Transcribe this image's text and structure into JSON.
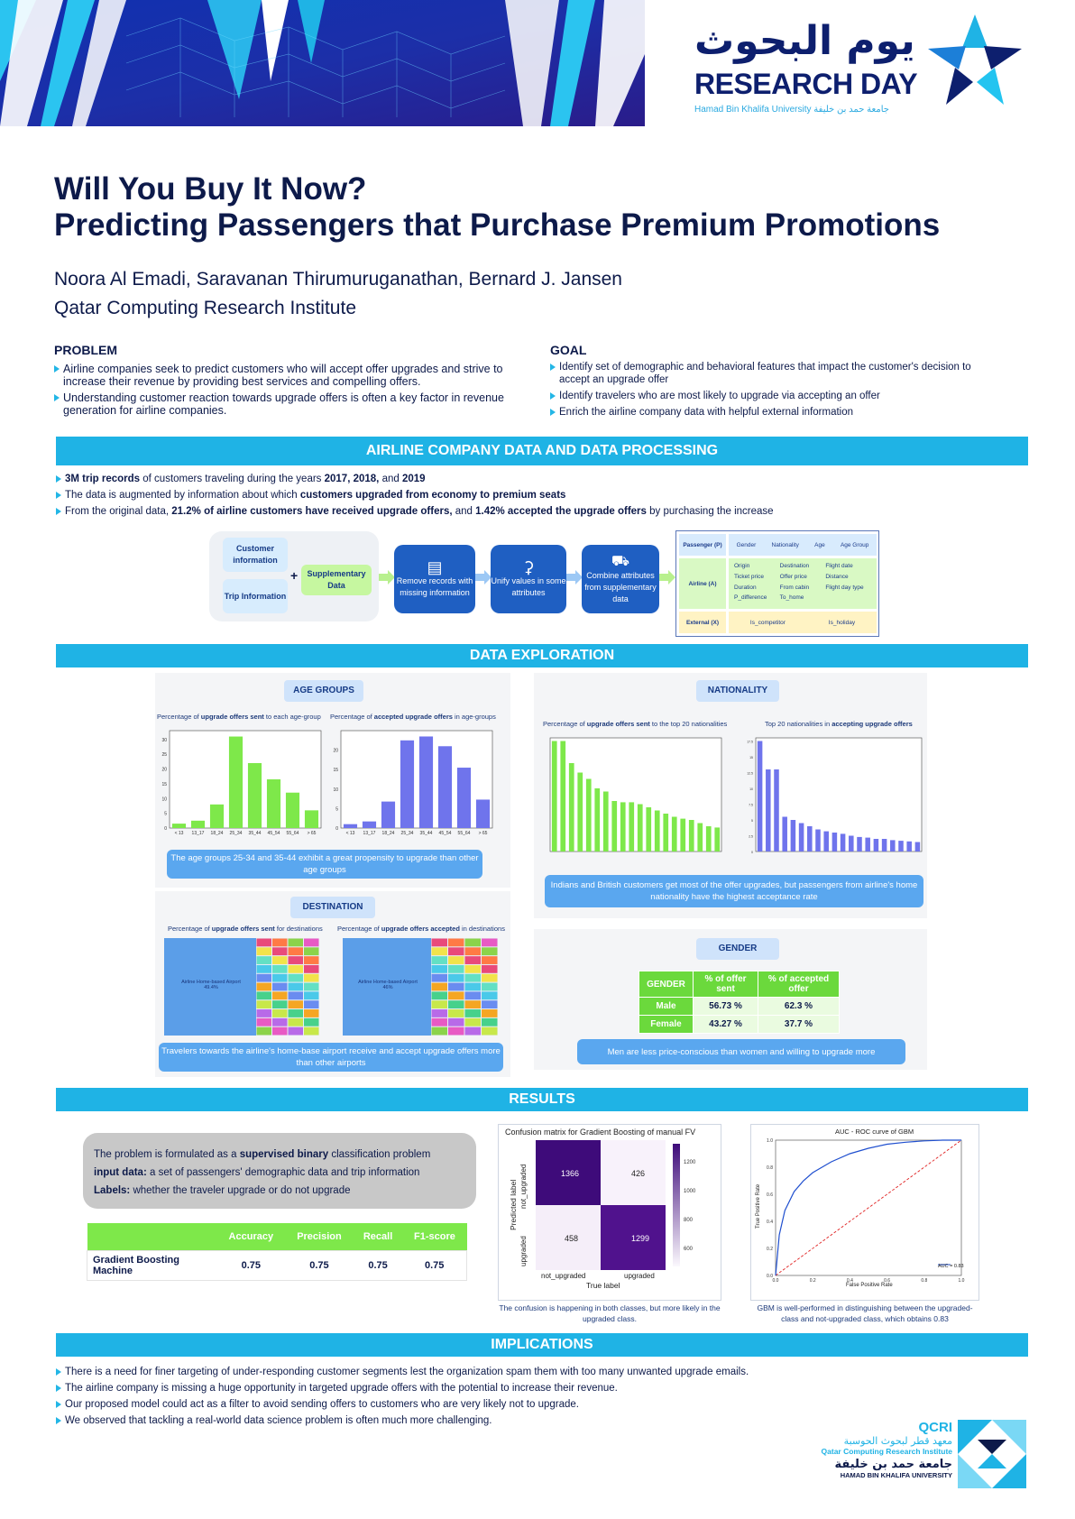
{
  "header": {
    "logo_arabic": "يوم البحوث",
    "logo_english": "RESEARCH DAY",
    "logo_sub": "Hamad Bin Khalifa University  جامعة حمد بن خليفة"
  },
  "title_line1": "Will You Buy It Now?",
  "title_line2": "Predicting Passengers that Purchase Premium Promotions",
  "authors": "Noora Al Emadi, Saravanan Thirumuruganathan, Bernard J. Jansen",
  "institute": "Qatar Computing Research Institute",
  "problem": {
    "heading": "PROBLEM",
    "items": [
      "Airline companies seek to predict customers who will accept offer upgrades and strive to increase their revenue by providing best services and compelling offers.",
      "Understanding customer reaction towards upgrade offers is often a key factor in revenue generation for airline companies."
    ]
  },
  "goal": {
    "heading": "GOAL",
    "items": [
      "Identify set of demographic and behavioral features that impact the customer's decision to accept an upgrade offer",
      "Identify travelers who are most likely to upgrade via accepting an offer",
      "Enrich the airline company data with helpful external information"
    ]
  },
  "data_section": {
    "title": "AIRLINE COMPANY DATA AND DATA PROCESSING",
    "b1_bold": "3M trip records",
    "b1_text": " of customers traveling during the years ",
    "b1_years": "2017, 2018,",
    "b1_and": " and ",
    "b1_year3": "2019",
    "b2_text": "The data is augmented by information about which ",
    "b2_bold": "customers upgraded from economy to premium seats",
    "b3_text1": "From the original data, ",
    "b3_bold1": "21.2% of airline customers have received upgrade offers,",
    "b3_text2": " and ",
    "b3_bold2": "1.42% accepted the upgrade offers",
    "b3_text3": " by purchasing the increase",
    "flow": {
      "customer": "Customer information",
      "trip": "Trip Information",
      "plus": "+",
      "supp": "Supplementary Data",
      "remove": "Remove records with missing information",
      "unify": "Unify values in some attributes",
      "combine": "Combine attributes from supplementary data"
    },
    "attr": {
      "passenger": "Passenger (P)",
      "p_attrs": [
        "Gender",
        "Nationality",
        "Age",
        "Age Group"
      ],
      "airline": "Airline (A)",
      "a_attrs": [
        "Origin",
        "Destination",
        "Flight date",
        "Ticket price",
        "Offer price",
        "Distance",
        "Duration",
        "From cabin",
        "Flight day type",
        "P_difference",
        "To_home",
        ""
      ],
      "external": "External (X)",
      "x_attrs": [
        "Is_competitor",
        "Is_holiday"
      ]
    }
  },
  "exploration": {
    "title": "DATA EXPLORATION",
    "age": {
      "chip": "AGE GROUPS",
      "left_caption_pre": "Percentage of ",
      "left_caption_bold": "upgrade offers sent",
      "left_caption_post": " to each age-group",
      "right_caption_pre": "Percentage of ",
      "right_caption_bold": "accepted upgrade offers",
      "right_caption_post": " in age-groups",
      "note": "The age groups 25-34 and 35-44 exhibit a great propensity to upgrade than other age groups"
    },
    "nationality": {
      "chip": "NATIONALITY",
      "left_caption_pre": "Percentage of ",
      "left_caption_bold": "upgrade offers sent",
      "left_caption_post": " to the top 20 nationalities",
      "right_caption_pre": "Top 20 nationalities in ",
      "right_caption_bold": "accepting upgrade offers",
      "note": "Indians and British customers get most of the offer upgrades, but passengers from airline's home nationality have the highest acceptance rate"
    },
    "destination": {
      "chip": "DESTINATION",
      "left_caption_pre": "Percentage of ",
      "left_caption_bold": "upgrade offers sent",
      "left_caption_post": " for destinations",
      "right_caption_pre": "Percentage of ",
      "right_caption_bold": "upgrade offers accepted",
      "right_caption_post": " in destinations",
      "left_big": "Airline Home-based Airport\n49.4%",
      "right_big": "Airline Home-based Airport\n46%",
      "note": "Travelers towards the airline's home-base airport receive and accept upgrade offers more than other airports"
    },
    "gender": {
      "chip": "GENDER",
      "headers": [
        "GENDER",
        "% of offer sent",
        "% of accepted offer"
      ],
      "rows": [
        [
          "Male",
          "56.73 %",
          "62.3 %"
        ],
        [
          "Female",
          "43.27 %",
          "37.7 %"
        ]
      ],
      "note": "Men are less price-conscious than women and willing to upgrade more"
    }
  },
  "chart_data": [
    {
      "type": "bar",
      "title": "Percentage of upgrade offers sent to each age-group",
      "categories": [
        "< 13",
        "13_17",
        "18_24",
        "25_34",
        "35_44",
        "45_54",
        "55_64",
        "> 65"
      ],
      "values": [
        1.5,
        2.5,
        8,
        31,
        22,
        16.5,
        12,
        6
      ],
      "ylim": [
        0,
        33
      ],
      "yticks": [
        0,
        5,
        10,
        15,
        20,
        25,
        30
      ],
      "color": "#7ee84a"
    },
    {
      "type": "bar",
      "title": "Percentage of accepted upgrade offers in age-groups",
      "categories": [
        "< 13",
        "13_17",
        "18_24",
        "25_34",
        "35_44",
        "45_54",
        "55_64",
        "> 65"
      ],
      "values": [
        1,
        1.7,
        6.8,
        22.5,
        23.5,
        21,
        15.5,
        7.3
      ],
      "ylim": [
        0,
        25
      ],
      "yticks": [
        0,
        5,
        10,
        15,
        20
      ],
      "color": "#6f74ec"
    },
    {
      "type": "bar",
      "title": "Percentage of upgrade offers sent to the top 20 nationalities",
      "values": [
        17.5,
        17.5,
        14,
        12.5,
        11.5,
        10,
        9.5,
        8,
        7.8,
        7.8,
        7.5,
        7,
        6.5,
        6,
        5.5,
        5.2,
        5,
        4.5,
        4,
        3.8
      ],
      "ylim": [
        0,
        18
      ],
      "color": "#7ee84a"
    },
    {
      "type": "bar",
      "title": "Top 20 nationalities in accepting upgrade offers",
      "values": [
        17.5,
        13,
        13,
        5.5,
        5,
        4.5,
        4,
        3.5,
        3.2,
        3,
        2.8,
        2.5,
        2.3,
        2.2,
        2,
        2,
        1.8,
        1.7,
        1.6,
        1.5
      ],
      "ylim": [
        0,
        18
      ],
      "yticks": [
        0,
        2.5,
        5.0,
        7.5,
        10.0,
        12.5,
        15.0,
        17.5
      ],
      "color": "#6f74ec"
    },
    {
      "type": "heatmap",
      "title": "Confusion matrix for Gradient Boosting of manual FV",
      "rows": [
        "not_upgraded",
        "upgraded"
      ],
      "cols": [
        "not_upgraded",
        "upgraded"
      ],
      "values": [
        [
          1366,
          426
        ],
        [
          458,
          1299
        ]
      ],
      "xlabel": "True label",
      "ylabel": "Predicted label",
      "colorbar_ticks": [
        600,
        800,
        1000,
        1200
      ]
    },
    {
      "type": "line",
      "title": "AUC - ROC curve of GBM",
      "xlabel": "False Positive Rate",
      "ylabel": "True Positive Rate",
      "xlim": [
        0,
        1
      ],
      "ylim": [
        0,
        1
      ],
      "series": [
        {
          "name": "AUC = 0.83",
          "x": [
            0,
            0.02,
            0.05,
            0.1,
            0.15,
            0.2,
            0.3,
            0.4,
            0.5,
            0.6,
            0.7,
            0.8,
            0.9,
            1.0
          ],
          "y": [
            0,
            0.3,
            0.48,
            0.62,
            0.7,
            0.76,
            0.84,
            0.9,
            0.94,
            0.97,
            0.985,
            0.995,
            1.0,
            1.0
          ]
        }
      ]
    }
  ],
  "results": {
    "title": "RESULTS",
    "l1_pre": "The problem is formulated as a ",
    "l1_bold": "supervised binary",
    "l1_post": " classification problem",
    "l2_bold": "input data:",
    "l2_post": " a set of passengers' demographic data and trip information",
    "l3_bold": "Labels:",
    "l3_post": " whether the traveler upgrade or do not upgrade",
    "table_headers": [
      "",
      "Accuracy",
      "Precision",
      "Recall",
      "F1-score"
    ],
    "table_row": [
      "Gradient Boosting Machine",
      "0.75",
      "0.75",
      "0.75",
      "0.75"
    ],
    "cm_title": "Confusion matrix for Gradient Boosting of manual FV",
    "cm_caption": "The confusion is happening in both classes, but more likely in the upgraded class.",
    "roc_title": "AUC - ROC curve of GBM",
    "roc_caption": "GBM is well-performed in distinguishing between the upgraded-class and not-upgraded class, which obtains 0.83",
    "roc_legend": "AUC = 0.83",
    "roc_xlabel": "False Positive Rate",
    "roc_ylabel": "True Positive Rate",
    "cm_xlabel": "True label",
    "cm_ylabel": "Predicted label",
    "cm_c00": "1366",
    "cm_c01": "426",
    "cm_c10": "458",
    "cm_c11": "1299",
    "cm_row0": "not_upgraded",
    "cm_row1": "upgraded",
    "cm_col0": "not_upgraded",
    "cm_col1": "upgraded"
  },
  "implications": {
    "title": "IMPLICATIONS",
    "items": [
      "There is a need for finer targeting of under-responding customer segments lest the organization spam them with too many unwanted upgrade emails.",
      "The airline company is missing a huge opportunity in targeted upgrade offers with the potential to increase their revenue.",
      "Our proposed model could act as a filter to avoid sending offers to customers who are very likely not to upgrade.",
      "We observed that tackling a real-world data science problem is often much more challenging."
    ]
  },
  "footer": {
    "qcri": "QCRI",
    "qcri_ar": "معهد قطر لبحوث الحوسبة",
    "qcri_en": "Qatar Computing Research Institute",
    "hbku_ar": "جامعة حمد بن خليفة",
    "hbku_en": "HAMAD BIN KHALIFA UNIVERSITY"
  },
  "colors": {
    "accent": "#1fb3e5",
    "navy": "#0d1a4a",
    "green": "#7ee84a",
    "purple": "#6f74ec",
    "pill": "#5aa7ef"
  }
}
